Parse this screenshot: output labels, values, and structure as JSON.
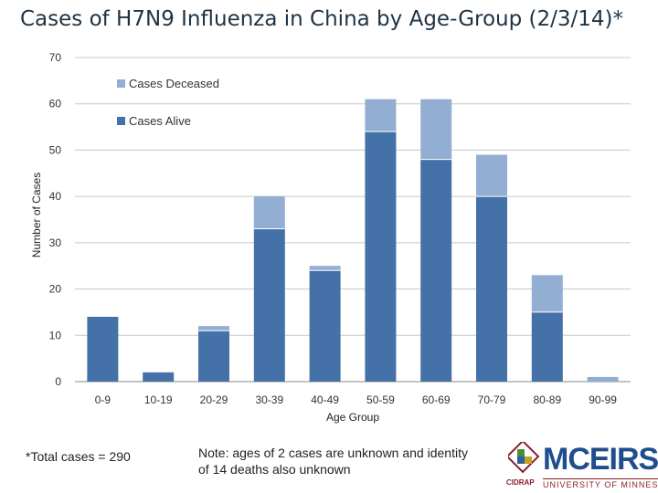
{
  "title": "Cases of H7N9 Influenza in China by Age-Group (2/3/14)*",
  "chart_data": {
    "type": "bar",
    "stacked": true,
    "categories": [
      "0-9",
      "10-19",
      "20-29",
      "30-39",
      "40-49",
      "50-59",
      "60-69",
      "70-79",
      "80-89",
      "90-99"
    ],
    "series": [
      {
        "name": "Cases Alive",
        "values": [
          14,
          2,
          11,
          33,
          24,
          54,
          48,
          40,
          15,
          0
        ],
        "color": "#4472a8"
      },
      {
        "name": "Cases Deceased",
        "values": [
          0,
          0,
          1,
          7,
          1,
          7,
          13,
          9,
          8,
          1
        ],
        "color": "#93aed3"
      }
    ],
    "xlabel": "Age Group",
    "ylabel": "Number of Cases",
    "ylim": [
      0,
      70
    ],
    "yticks": [
      0,
      10,
      20,
      30,
      40,
      50,
      60,
      70
    ],
    "grid": true,
    "legend": "top-left"
  },
  "footnotes": {
    "total": "*Total cases = 290",
    "note": "Note: ages of 2 cases are unknown and identity of 14 deaths also unknown"
  },
  "logo": {
    "name": "MCEIRS",
    "subtitle": "UNIVERSITY OF MINNESOTA",
    "org": "CIDRAP",
    "colors": {
      "primary": "#1f4e8c",
      "accent": "#8a1f2a"
    }
  }
}
